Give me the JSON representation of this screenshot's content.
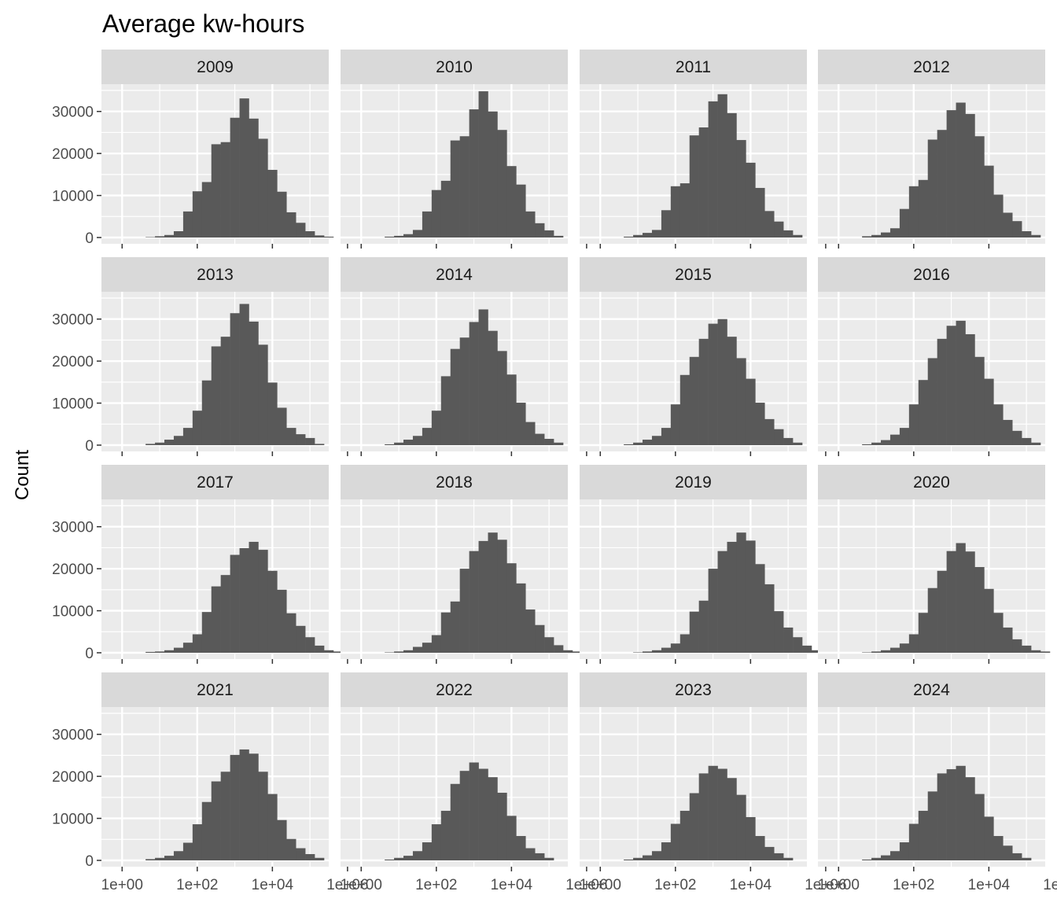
{
  "chart_data": {
    "type": "bar",
    "subtype": "histogram-facet-grid",
    "title": "Average kw-hours",
    "xlabel": "",
    "ylabel": "Count",
    "x_scale": "log10",
    "x_tick_labels": [
      "1e+00",
      "1e+02",
      "1e+04",
      "1e+06"
    ],
    "x_tick_values": [
      1,
      100,
      10000,
      1000000
    ],
    "y_tick_labels": [
      "0",
      "10000",
      "20000",
      "30000"
    ],
    "y_tick_values": [
      0,
      10000,
      20000,
      30000
    ],
    "ylim": [
      0,
      35000
    ],
    "facet_columns": 4,
    "grid": true,
    "bar_color": "#595959",
    "panel_background": "#ebebeb",
    "strip_background": "#d9d9d9",
    "bin_width_log10": 0.25,
    "bin_start_log10": -0.375,
    "panels": [
      {
        "label": "2009",
        "counts": [
          0,
          0,
          0,
          0,
          100,
          300,
          600,
          1500,
          6200,
          11000,
          13200,
          22200,
          22700,
          28500,
          33100,
          28300,
          23500,
          16100,
          10900,
          6000,
          3500,
          1500,
          500,
          200,
          0,
          0,
          0,
          0,
          0,
          0
        ]
      },
      {
        "label": "2010",
        "counts": [
          0,
          0,
          0,
          0,
          200,
          400,
          800,
          1800,
          6200,
          11300,
          13500,
          23100,
          24100,
          30500,
          34800,
          30000,
          25600,
          17000,
          12600,
          6200,
          3400,
          1700,
          400,
          0,
          0,
          0,
          0,
          0,
          0,
          0
        ]
      },
      {
        "label": "2011",
        "counts": [
          0,
          0,
          0,
          0,
          200,
          600,
          1100,
          1800,
          6500,
          12200,
          12900,
          24300,
          26200,
          32400,
          34100,
          29600,
          23200,
          17800,
          11800,
          6300,
          3800,
          1700,
          600,
          0,
          0,
          0,
          0,
          0,
          0,
          0
        ]
      },
      {
        "label": "2012",
        "counts": [
          0,
          0,
          0,
          0,
          300,
          600,
          1200,
          2200,
          6800,
          12200,
          13700,
          23300,
          25600,
          30300,
          32100,
          29400,
          24100,
          17100,
          10200,
          5900,
          3900,
          1500,
          600,
          0,
          0,
          0,
          0,
          0,
          0,
          0
        ]
      },
      {
        "label": "2013",
        "counts": [
          0,
          0,
          0,
          0,
          300,
          600,
          1300,
          2200,
          4100,
          8200,
          15400,
          23500,
          25800,
          31400,
          33600,
          29400,
          23900,
          14900,
          8900,
          4100,
          2600,
          1700,
          300,
          0,
          0,
          0,
          0,
          0,
          0,
          0
        ]
      },
      {
        "label": "2014",
        "counts": [
          0,
          0,
          0,
          0,
          200,
          600,
          1300,
          2200,
          4100,
          8200,
          16400,
          22900,
          25600,
          29300,
          32300,
          27200,
          22400,
          16800,
          10100,
          5500,
          2700,
          1500,
          600,
          0,
          0,
          0,
          0,
          0,
          0,
          0
        ]
      },
      {
        "label": "2015",
        "counts": [
          0,
          0,
          0,
          0,
          200,
          600,
          1300,
          2200,
          4100,
          9700,
          16700,
          21000,
          25300,
          28900,
          30000,
          25800,
          20700,
          15800,
          10100,
          6200,
          3800,
          1700,
          600,
          0,
          0,
          0,
          0,
          0,
          0,
          0
        ]
      },
      {
        "label": "2016",
        "counts": [
          0,
          0,
          0,
          0,
          200,
          600,
          1200,
          2500,
          4100,
          9700,
          15500,
          20700,
          25300,
          28400,
          29600,
          26400,
          21000,
          15800,
          9700,
          6000,
          3400,
          1700,
          600,
          0,
          0,
          0,
          0,
          0,
          0,
          0
        ]
      },
      {
        "label": "2017",
        "counts": [
          0,
          0,
          0,
          0,
          200,
          300,
          600,
          1200,
          2400,
          4400,
          9700,
          15800,
          18500,
          23300,
          24900,
          26400,
          24500,
          19500,
          15000,
          9400,
          6400,
          3700,
          1700,
          600,
          300,
          0,
          0,
          0,
          0,
          0
        ]
      },
      {
        "label": "2018",
        "counts": [
          0,
          0,
          0,
          0,
          100,
          300,
          600,
          1400,
          2400,
          4200,
          9600,
          12200,
          20000,
          24200,
          26600,
          28600,
          26900,
          21300,
          16500,
          10300,
          6600,
          3700,
          1800,
          600,
          300,
          0,
          0,
          0,
          0,
          0
        ]
      },
      {
        "label": "2019",
        "counts": [
          0,
          0,
          0,
          0,
          0,
          100,
          300,
          600,
          1200,
          2200,
          4400,
          9800,
          12400,
          20000,
          24200,
          26400,
          28600,
          26700,
          21100,
          16300,
          9900,
          6000,
          3700,
          1700,
          600,
          300,
          0,
          0,
          0,
          0
        ]
      },
      {
        "label": "2020",
        "counts": [
          0,
          0,
          0,
          0,
          100,
          300,
          600,
          1200,
          2200,
          4400,
          9500,
          15400,
          19500,
          24200,
          26100,
          24100,
          20400,
          15200,
          9500,
          6000,
          3200,
          1700,
          600,
          300,
          0,
          0,
          0,
          0,
          0,
          0
        ]
      },
      {
        "label": "2021",
        "counts": [
          0,
          0,
          0,
          0,
          300,
          600,
          1100,
          2200,
          4200,
          8600,
          13900,
          18800,
          21100,
          25100,
          26400,
          25400,
          21100,
          15800,
          9600,
          5100,
          2900,
          1500,
          600,
          0,
          0,
          0,
          0,
          0,
          0,
          0
        ]
      },
      {
        "label": "2022",
        "counts": [
          0,
          0,
          0,
          0,
          200,
          600,
          1100,
          2200,
          4300,
          8600,
          11800,
          18200,
          21300,
          23300,
          21800,
          19800,
          16100,
          10600,
          5800,
          2900,
          1700,
          600,
          0,
          0,
          0,
          0,
          0,
          0,
          0,
          0
        ]
      },
      {
        "label": "2023",
        "counts": [
          0,
          0,
          0,
          0,
          200,
          600,
          1200,
          2200,
          4300,
          8700,
          11800,
          16000,
          20700,
          22500,
          21800,
          19600,
          15600,
          10300,
          5800,
          3200,
          1700,
          600,
          0,
          0,
          0,
          0,
          0,
          0,
          0,
          0
        ]
      },
      {
        "label": "2024",
        "counts": [
          0,
          0,
          0,
          0,
          200,
          600,
          1200,
          2200,
          4300,
          8700,
          11800,
          16400,
          20700,
          21700,
          22500,
          19800,
          15800,
          10400,
          5800,
          3500,
          1700,
          600,
          0,
          0,
          0,
          0,
          0,
          0,
          0,
          0
        ]
      }
    ]
  }
}
